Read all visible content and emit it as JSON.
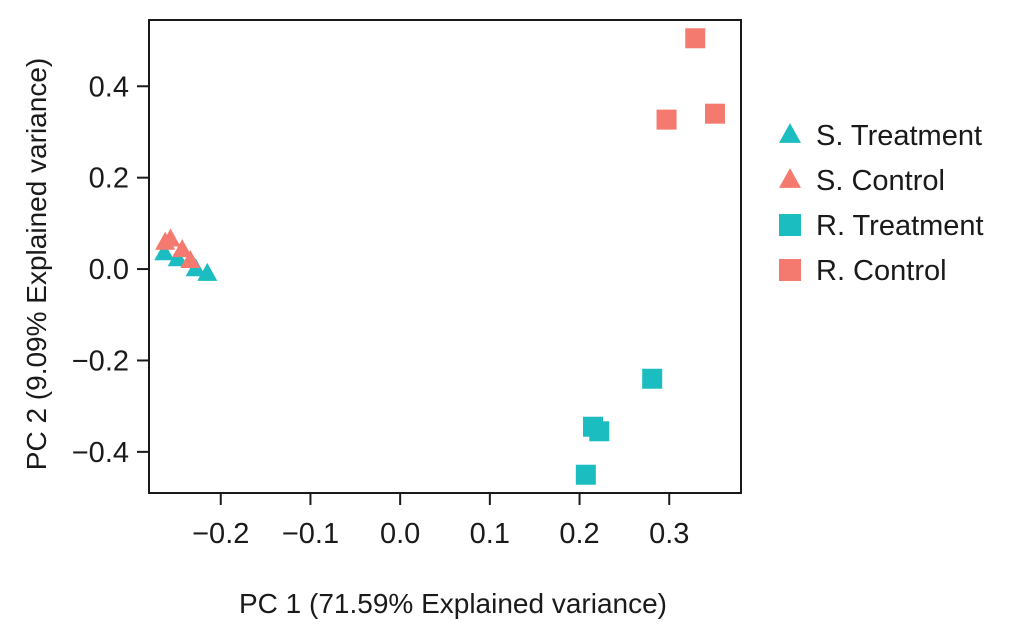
{
  "chart_data": {
    "type": "scatter",
    "title": "",
    "xlabel": "PC 1 (71.59%  Explained variance)",
    "ylabel": "PC 2 (9.09%  Explained variance)",
    "xlim": [
      -0.28,
      0.38
    ],
    "ylim": [
      -0.49,
      0.545
    ],
    "xticks": [
      -0.2,
      -0.1,
      0.0,
      0.1,
      0.2,
      0.3
    ],
    "xtick_labels": [
      "−0.2",
      "−0.1",
      "0.0",
      "0.1",
      "0.2",
      "0.3"
    ],
    "yticks": [
      -0.4,
      -0.2,
      0.0,
      0.2,
      0.4
    ],
    "ytick_labels": [
      "−0.4",
      "−0.2",
      "0.0",
      "0.2",
      "0.4"
    ],
    "grid": false,
    "legend_position": "right",
    "series": [
      {
        "name": "S. Treatment",
        "marker": "triangle",
        "color": "#1bbdc1",
        "x": [
          -0.263,
          -0.248,
          -0.228,
          -0.215
        ],
        "y": [
          0.035,
          0.022,
          0.0,
          -0.01
        ]
      },
      {
        "name": "S. Control",
        "marker": "triangle",
        "color": "#f47a6f",
        "x": [
          -0.262,
          -0.256,
          -0.243,
          -0.234
        ],
        "y": [
          0.058,
          0.065,
          0.042,
          0.018
        ]
      },
      {
        "name": "R. Treatment",
        "marker": "square",
        "color": "#1bbdc1",
        "x": [
          0.207,
          0.215,
          0.222,
          0.281
        ],
        "y": [
          -0.45,
          -0.345,
          -0.355,
          -0.24
        ]
      },
      {
        "name": "R. Control",
        "marker": "square",
        "color": "#f47a6f",
        "x": [
          0.297,
          0.329,
          0.351
        ],
        "y": [
          0.327,
          0.505,
          0.34
        ]
      }
    ]
  }
}
